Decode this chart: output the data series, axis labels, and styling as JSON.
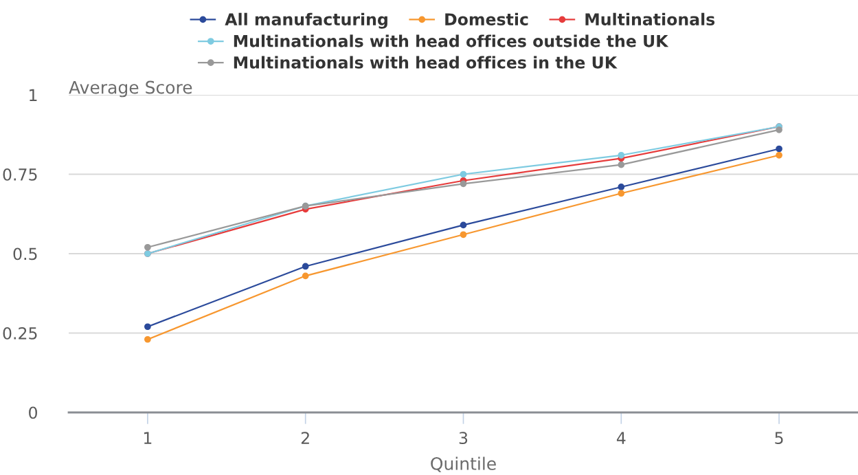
{
  "chart_data": {
    "type": "line",
    "categories": [
      "1",
      "2",
      "3",
      "4",
      "5"
    ],
    "xlabel": "Quintile",
    "ylabel": "Average Score",
    "ylim": [
      0,
      1
    ],
    "yticks": [
      0,
      0.25,
      0.5,
      0.75,
      1
    ],
    "grid": "y",
    "legend": "top",
    "marker": "circle",
    "line_style": "solid",
    "series": [
      {
        "name": "All manufacturing",
        "color": "#2b4a9b",
        "values": [
          0.27,
          0.46,
          0.59,
          0.71,
          0.83
        ]
      },
      {
        "name": "Domestic",
        "color": "#f7972f",
        "values": [
          0.23,
          0.43,
          0.56,
          0.69,
          0.81
        ]
      },
      {
        "name": "Multinationals",
        "color": "#e63c3c",
        "values": [
          0.5,
          0.64,
          0.73,
          0.8,
          0.9
        ]
      },
      {
        "name": "Multinationals with head offices outside the UK",
        "color": "#7ecbe1",
        "values": [
          0.5,
          0.65,
          0.75,
          0.81,
          0.9
        ]
      },
      {
        "name": "Multinationals with head offices in the UK",
        "color": "#999999",
        "values": [
          0.52,
          0.65,
          0.72,
          0.78,
          0.89
        ]
      }
    ]
  }
}
